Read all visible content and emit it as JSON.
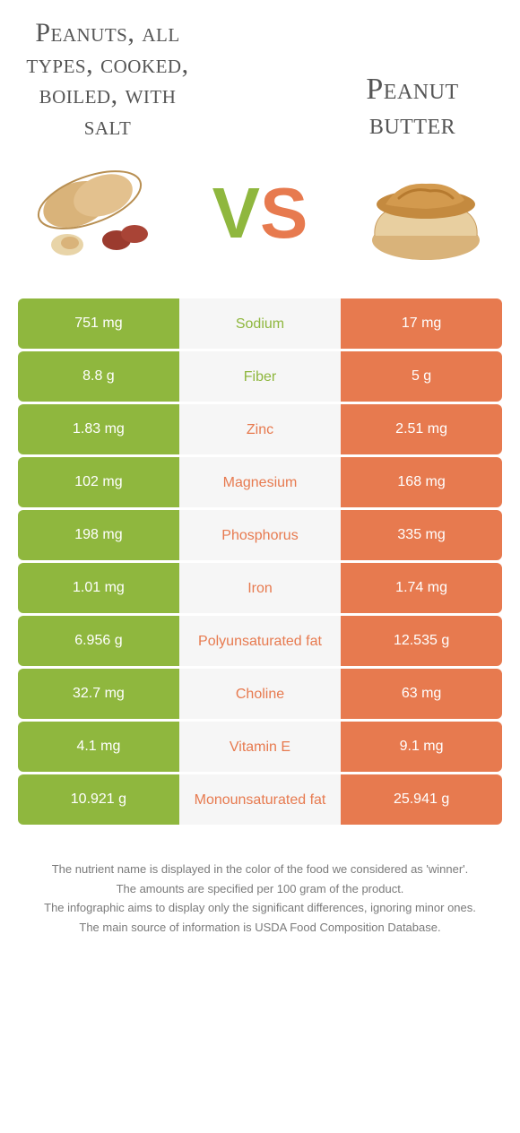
{
  "titles": {
    "left": "Peanuts, all types, cooked, boiled, with salt",
    "right": "Peanut butter"
  },
  "vs": {
    "v": "V",
    "s": "S"
  },
  "colors": {
    "left": "#8fb73e",
    "right": "#e77a4f",
    "mid_bg": "#f6f6f6",
    "text": "#4a4a4a",
    "footer": "#7a7a7a"
  },
  "rows": [
    {
      "left": "751 mg",
      "label": "Sodium",
      "right": "17 mg",
      "winner": "left"
    },
    {
      "left": "8.8 g",
      "label": "Fiber",
      "right": "5 g",
      "winner": "left"
    },
    {
      "left": "1.83 mg",
      "label": "Zinc",
      "right": "2.51 mg",
      "winner": "right"
    },
    {
      "left": "102 mg",
      "label": "Magnesium",
      "right": "168 mg",
      "winner": "right"
    },
    {
      "left": "198 mg",
      "label": "Phosphorus",
      "right": "335 mg",
      "winner": "right"
    },
    {
      "left": "1.01 mg",
      "label": "Iron",
      "right": "1.74 mg",
      "winner": "right"
    },
    {
      "left": "6.956 g",
      "label": "Polyunsaturated fat",
      "right": "12.535 g",
      "winner": "right"
    },
    {
      "left": "32.7 mg",
      "label": "Choline",
      "right": "63 mg",
      "winner": "right"
    },
    {
      "left": "4.1 mg",
      "label": "Vitamin E",
      "right": "9.1 mg",
      "winner": "right"
    },
    {
      "left": "10.921 g",
      "label": "Monounsaturated fat",
      "right": "25.941 g",
      "winner": "right"
    }
  ],
  "footer": [
    "The nutrient name is displayed in the color of the food we considered as 'winner'.",
    "The amounts are specified per 100 gram of the product.",
    "The infographic aims to display only the significant differences, ignoring minor ones.",
    "The main source of information is USDA Food Composition Database."
  ]
}
